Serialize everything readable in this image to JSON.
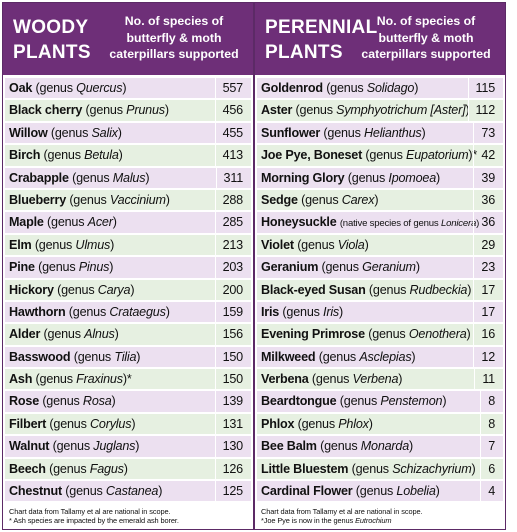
{
  "woody": {
    "title": [
      "WOODY",
      "PLANTS"
    ],
    "desc": [
      "No. of species of",
      "butterfly & moth",
      "caterpillars supported"
    ],
    "rows": [
      {
        "name": "Oak",
        "note": "(genus ",
        "species": "Quercus",
        "close": ")",
        "value": "557"
      },
      {
        "name": "Black cherry",
        "note": "(genus ",
        "species": "Prunus",
        "close": ")",
        "value": "456"
      },
      {
        "name": "Willow",
        "note": "(genus ",
        "species": "Salix",
        "close": ")",
        "value": "455"
      },
      {
        "name": "Birch",
        "note": "(genus ",
        "species": "Betula",
        "close": ")",
        "value": "413"
      },
      {
        "name": "Crabapple",
        "note": "(genus ",
        "species": "Malus",
        "close": ")",
        "value": "311"
      },
      {
        "name": "Blueberry",
        "note": "(genus ",
        "species": "Vaccinium",
        "close": ")",
        "value": "288"
      },
      {
        "name": "Maple",
        "note": "(genus ",
        "species": "Acer",
        "close": ")",
        "value": "285"
      },
      {
        "name": "Elm",
        "note": "(genus ",
        "species": "Ulmus",
        "close": ")",
        "value": "213"
      },
      {
        "name": "Pine",
        "note": "(genus ",
        "species": "Pinus",
        "close": ")",
        "value": "203"
      },
      {
        "name": "Hickory",
        "note": "(genus ",
        "species": "Carya",
        "close": ")",
        "value": "200"
      },
      {
        "name": "Hawthorn",
        "note": "(genus ",
        "species": "Crataegus",
        "close": ")",
        "value": "159"
      },
      {
        "name": "Alder",
        "note": "(genus ",
        "species": "Alnus",
        "close": ")",
        "value": "156"
      },
      {
        "name": "Basswood",
        "note": "(genus ",
        "species": "Tilia",
        "close": ")",
        "value": "150"
      },
      {
        "name": "Ash",
        "note": "(genus ",
        "species": "Fraxinus",
        "close": ")*",
        "value": "150"
      },
      {
        "name": "Rose",
        "note": "(genus ",
        "species": "Rosa",
        "close": ")",
        "value": "139"
      },
      {
        "name": "Filbert",
        "note": "(genus ",
        "species": "Corylus",
        "close": ")",
        "value": "131"
      },
      {
        "name": "Walnut",
        "note": "(genus ",
        "species": "Juglans",
        "close": ")",
        "value": "130"
      },
      {
        "name": "Beech",
        "note": "(genus ",
        "species": "Fagus",
        "close": ")",
        "value": "126"
      },
      {
        "name": "Chestnut",
        "note": "(genus ",
        "species": "Castanea",
        "close": ")",
        "value": "125"
      }
    ],
    "footnotes": [
      "Chart data from Tallamy et al are national in scope.",
      "* Ash species are impacted by the emerald ash borer."
    ]
  },
  "perennial": {
    "title": [
      "PERENNIAL",
      "PLANTS"
    ],
    "desc": [
      "No. of species of",
      "butterfly & moth",
      "caterpillars supported"
    ],
    "rows": [
      {
        "name": "Goldenrod",
        "note": "(genus ",
        "species": "Solidago",
        "close": ")",
        "value": "115"
      },
      {
        "name": "Aster",
        "note": "(genus ",
        "species": "Symphyotrichum [Aster]",
        "close": ")",
        "value": "112"
      },
      {
        "name": "Sunflower",
        "note": "(genus ",
        "species": "Helianthus",
        "close": ")",
        "value": "73"
      },
      {
        "name": "Joe Pye, Boneset",
        "note": "(genus ",
        "species": "Eupatorium",
        "close": ")*",
        "value": "42"
      },
      {
        "name": "Morning Glory",
        "note": "(genus ",
        "species": "Ipomoea",
        "close": ")",
        "value": "39"
      },
      {
        "name": "Sedge",
        "note": "(genus ",
        "species": "Carex",
        "close": ")",
        "value": "36"
      },
      {
        "name": "Honeysuckle",
        "note": "(native species of genus ",
        "species": "Lonicera",
        "close": ")",
        "value": "36",
        "small": true
      },
      {
        "name": "Violet",
        "note": "(genus ",
        "species": "Viola",
        "close": ")",
        "value": "29"
      },
      {
        "name": "Geranium",
        "note": "(genus ",
        "species": "Geranium",
        "close": ")",
        "value": "23"
      },
      {
        "name": "Black-eyed Susan",
        "note": "(genus ",
        "species": "Rudbeckia",
        "close": ")",
        "value": "17"
      },
      {
        "name": "Iris",
        "note": "(genus ",
        "species": "Iris",
        "close": ")",
        "value": "17"
      },
      {
        "name": "Evening Primrose",
        "note": "(genus ",
        "species": "Oenothera",
        "close": ")",
        "value": "16"
      },
      {
        "name": "Milkweed",
        "note": "(genus ",
        "species": "Asclepias",
        "close": ")",
        "value": "12"
      },
      {
        "name": "Verbena",
        "note": "(genus ",
        "species": "Verbena",
        "close": ")",
        "value": "11"
      },
      {
        "name": "Beardtongue",
        "note": "(genus ",
        "species": "Penstemon",
        "close": ")",
        "value": "8"
      },
      {
        "name": "Phlox",
        "note": "(genus ",
        "species": "Phlox",
        "close": ")",
        "value": "8"
      },
      {
        "name": "Bee Balm",
        "note": "(genus ",
        "species": "Monarda",
        "close": ")",
        "value": "7"
      },
      {
        "name": "Little Bluestem",
        "note": "(genus ",
        "species": "Schizachyrium",
        "close": ")",
        "value": "6"
      },
      {
        "name": "Cardinal Flower",
        "note": "(genus ",
        "species": "Lobelia",
        "close": ")",
        "value": "4"
      }
    ],
    "footnotes": [
      "Chart data from Tallamy et al are national in scope.",
      "*Joe Pye is now in the genus ",
      "Eutrochium"
    ]
  },
  "colors": {
    "header": "#6e2f78",
    "row_purple": "#ece0f0",
    "row_green": "#e6f0e1"
  }
}
